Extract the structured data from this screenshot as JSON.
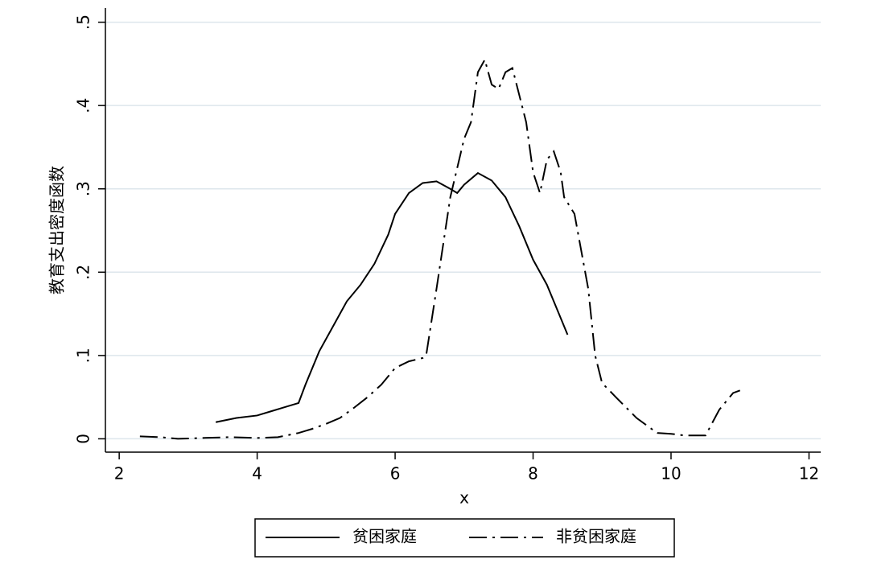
{
  "chart_data": {
    "type": "line",
    "x_label": "x",
    "y_label": "教育支出密度函数",
    "xlim": [
      1.8,
      12.17
    ],
    "ylim": [
      -0.016,
      0.517
    ],
    "xticks": [
      2,
      4,
      6,
      8,
      10,
      12
    ],
    "yticks": [
      {
        "value": 0,
        "label": "0"
      },
      {
        "value": 0.1,
        "label": ".1"
      },
      {
        "value": 0.2,
        "label": ".2"
      },
      {
        "value": 0.3,
        "label": ".3"
      },
      {
        "value": 0.4,
        "label": ".4"
      },
      {
        "value": 0.5,
        "label": ".5"
      }
    ],
    "grid": true,
    "legend": "bottom",
    "series": [
      {
        "name": "贫困家庭",
        "color": "#000000",
        "dash": "solid",
        "x": [
          3.4,
          3.7,
          4.0,
          4.2,
          4.4,
          4.6,
          4.7,
          4.9,
          5.1,
          5.3,
          5.5,
          5.7,
          5.9,
          6.0,
          6.2,
          6.4,
          6.6,
          6.8,
          6.9,
          7.0,
          7.2,
          7.4,
          7.6,
          7.8,
          8.0,
          8.2,
          8.4,
          8.5
        ],
        "values": [
          0.02,
          0.025,
          0.028,
          0.033,
          0.038,
          0.043,
          0.065,
          0.105,
          0.135,
          0.165,
          0.185,
          0.21,
          0.245,
          0.27,
          0.295,
          0.307,
          0.309,
          0.3,
          0.295,
          0.305,
          0.319,
          0.31,
          0.29,
          0.255,
          0.215,
          0.185,
          0.145,
          0.125
        ]
      },
      {
        "name": "非贫困家庭",
        "color": "#000000",
        "dash": "dashdot",
        "x": [
          2.3,
          2.6,
          2.85,
          3.2,
          3.6,
          4.0,
          4.3,
          4.6,
          4.8,
          5.0,
          5.2,
          5.4,
          5.6,
          5.8,
          6.0,
          6.2,
          6.3,
          6.4,
          6.45,
          6.6,
          6.8,
          7.0,
          7.1,
          7.2,
          7.3,
          7.4,
          7.5,
          7.6,
          7.7,
          7.9,
          8.0,
          8.1,
          8.2,
          8.3,
          8.4,
          8.45,
          8.6,
          8.8,
          8.9,
          9.0,
          9.2,
          9.5,
          9.8,
          10.0,
          10.2,
          10.5,
          10.7,
          10.9,
          11.0
        ],
        "values": [
          0.003,
          0.002,
          0.0,
          0.001,
          0.002,
          0.001,
          0.002,
          0.007,
          0.012,
          0.018,
          0.025,
          0.037,
          0.05,
          0.065,
          0.085,
          0.093,
          0.095,
          0.097,
          0.1,
          0.18,
          0.29,
          0.36,
          0.38,
          0.44,
          0.455,
          0.425,
          0.42,
          0.44,
          0.445,
          0.38,
          0.32,
          0.295,
          0.335,
          0.345,
          0.32,
          0.29,
          0.27,
          0.18,
          0.1,
          0.067,
          0.05,
          0.025,
          0.007,
          0.006,
          0.004,
          0.004,
          0.035,
          0.055,
          0.058
        ]
      }
    ]
  }
}
